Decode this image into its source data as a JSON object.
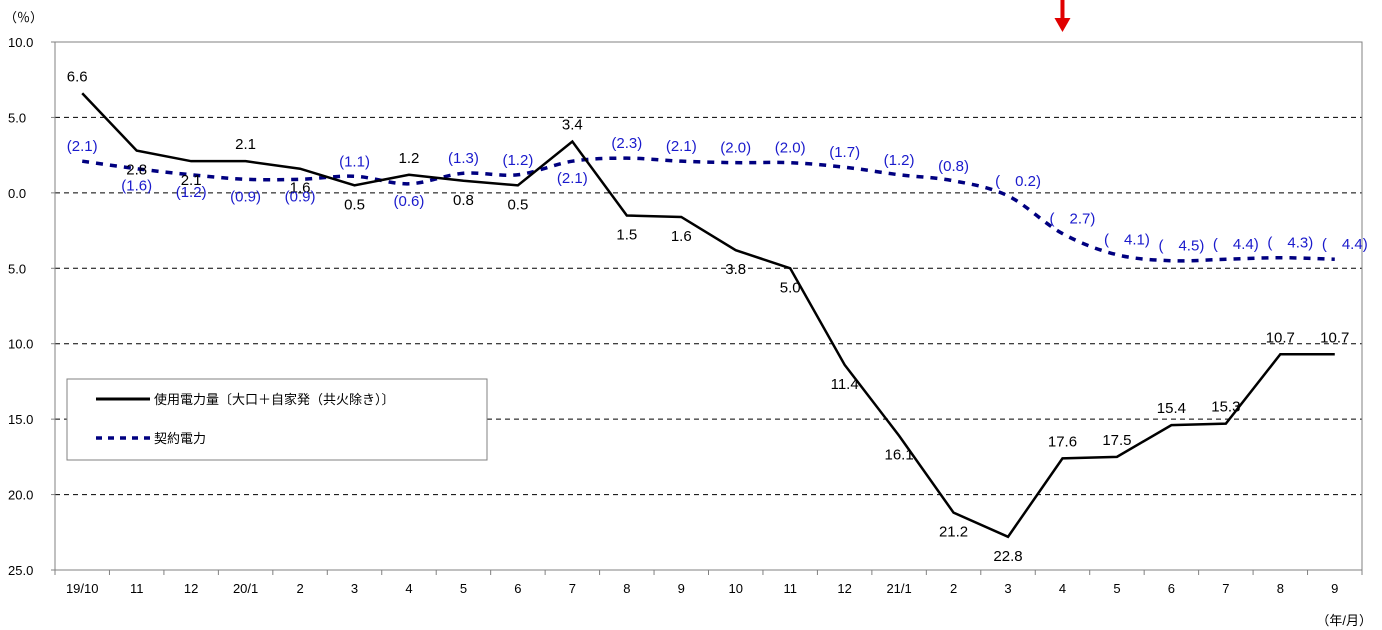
{
  "chart_data": {
    "type": "line",
    "y_unit_label": "（％）",
    "x_unit_label": "（年/月）",
    "ylim": [
      -25.0,
      10.0
    ],
    "y_ticks": [
      {
        "value": 10,
        "label": "10.0"
      },
      {
        "value": 5,
        "label": "5.0"
      },
      {
        "value": 0,
        "label": "0.0"
      },
      {
        "value": -5,
        "label": "5.0"
      },
      {
        "value": -10,
        "label": "10.0"
      },
      {
        "value": -15,
        "label": "15.0"
      },
      {
        "value": -20,
        "label": "20.0"
      },
      {
        "value": -25,
        "label": "25.0"
      }
    ],
    "grid": "dashed horizontal",
    "categories": [
      "19/10",
      "11",
      "12",
      "20/1",
      "2",
      "3",
      "4",
      "5",
      "6",
      "7",
      "8",
      "9",
      "10",
      "11",
      "12",
      "21/1",
      "2",
      "3",
      "4",
      "5",
      "6",
      "7",
      "8",
      "9"
    ],
    "series": [
      {
        "name": "使用電力量〔大口＋自家発（共火除き）〕",
        "style": "solid",
        "color": "#000000",
        "values": [
          6.6,
          2.8,
          2.1,
          2.1,
          1.6,
          0.5,
          1.2,
          0.8,
          0.5,
          3.4,
          -1.5,
          -1.6,
          -3.8,
          -5.0,
          -11.4,
          -16.1,
          -21.2,
          -22.8,
          -17.6,
          -17.5,
          -15.4,
          -15.3,
          -10.7,
          -10.7
        ],
        "labels": [
          "6.6",
          "2.8",
          "2.1",
          "2.1",
          "1.6",
          "0.5",
          "1.2",
          "0.8",
          "0.5",
          "3.4",
          "1.5",
          "1.6",
          "3.8",
          "5.0",
          "11.4",
          "16.1",
          "21.2",
          "22.8",
          "17.6",
          "17.5",
          "15.4",
          "15.3",
          "10.7",
          "10.7"
        ]
      },
      {
        "name": "契約電力",
        "style": "dashed",
        "color": "#000080",
        "label_color": "#1a1acc",
        "values": [
          2.1,
          1.6,
          1.2,
          0.9,
          0.9,
          1.1,
          0.6,
          1.3,
          1.2,
          2.1,
          2.3,
          2.1,
          2.0,
          2.0,
          1.7,
          1.2,
          0.8,
          -0.2,
          -2.7,
          -4.1,
          -4.5,
          -4.4,
          -4.3,
          -4.4
        ],
        "labels": [
          "(2.1)",
          "(1.6)",
          "(1.2)",
          "(0.9)",
          "(0.9)",
          "(1.1)",
          "(0.6)",
          "(1.3)",
          "(1.2)",
          "(2.1)",
          "(2.3)",
          "(2.1)",
          "(2.0)",
          "(2.0)",
          "(1.7)",
          "(1.2)",
          "(0.8)",
          "(　0.2)",
          "(　2.7)",
          "(　4.1)",
          "(　4.5)",
          "(　4.4)",
          "(　4.3)",
          "(　4.4)"
        ]
      }
    ],
    "legend": {
      "placement": "lower-left"
    },
    "marker": {
      "category_index": 18,
      "color": "#e00000",
      "shape": "down-arrow"
    }
  }
}
